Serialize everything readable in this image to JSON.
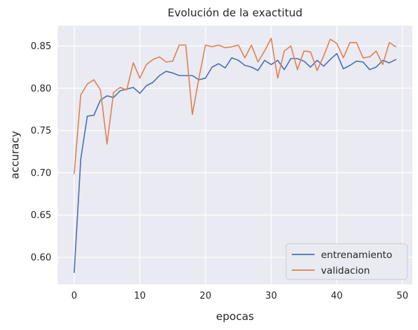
{
  "chart_data": {
    "type": "line",
    "title": "Evolución de la exactitud",
    "xlabel": "epocas",
    "ylabel": "accuracy",
    "xlim": [
      -2.5,
      51.5
    ],
    "ylim": [
      0.568,
      0.874
    ],
    "xticks": [
      0,
      10,
      20,
      30,
      40,
      50
    ],
    "yticks": [
      0.6,
      0.65,
      0.7,
      0.75,
      0.8,
      0.85
    ],
    "xtick_labels": [
      "0",
      "10",
      "20",
      "30",
      "40",
      "50"
    ],
    "ytick_labels": [
      "0.60",
      "0.65",
      "0.70",
      "0.75",
      "0.80",
      "0.85"
    ],
    "grid": true,
    "legend_position": "lower-right",
    "x": [
      0,
      1,
      2,
      3,
      4,
      5,
      6,
      7,
      8,
      9,
      10,
      11,
      12,
      13,
      14,
      15,
      16,
      17,
      18,
      19,
      20,
      21,
      22,
      23,
      24,
      25,
      26,
      27,
      28,
      29,
      30,
      31,
      32,
      33,
      34,
      35,
      36,
      37,
      38,
      39,
      40,
      41,
      42,
      43,
      44,
      45,
      46,
      47,
      48,
      49
    ],
    "series": [
      {
        "name": "entrenamiento",
        "color": "#4c72b0",
        "values": [
          0.582,
          0.716,
          0.767,
          0.768,
          0.786,
          0.791,
          0.789,
          0.797,
          0.799,
          0.801,
          0.794,
          0.803,
          0.807,
          0.815,
          0.82,
          0.818,
          0.815,
          0.815,
          0.815,
          0.81,
          0.812,
          0.825,
          0.829,
          0.824,
          0.836,
          0.833,
          0.827,
          0.825,
          0.821,
          0.833,
          0.828,
          0.833,
          0.822,
          0.835,
          0.835,
          0.832,
          0.825,
          0.833,
          0.826,
          0.834,
          0.841,
          0.823,
          0.827,
          0.832,
          0.831,
          0.822,
          0.825,
          0.833,
          0.83,
          0.834
        ]
      },
      {
        "name": "validacion",
        "color": "#dd8452",
        "values": [
          0.699,
          0.792,
          0.805,
          0.81,
          0.798,
          0.734,
          0.795,
          0.801,
          0.798,
          0.83,
          0.812,
          0.828,
          0.834,
          0.837,
          0.831,
          0.832,
          0.851,
          0.851,
          0.769,
          0.812,
          0.851,
          0.849,
          0.851,
          0.848,
          0.849,
          0.851,
          0.836,
          0.851,
          0.831,
          0.844,
          0.859,
          0.812,
          0.844,
          0.85,
          0.822,
          0.844,
          0.843,
          0.821,
          0.838,
          0.858,
          0.853,
          0.836,
          0.854,
          0.854,
          0.836,
          0.837,
          0.844,
          0.828,
          0.854,
          0.849
        ]
      }
    ]
  }
}
